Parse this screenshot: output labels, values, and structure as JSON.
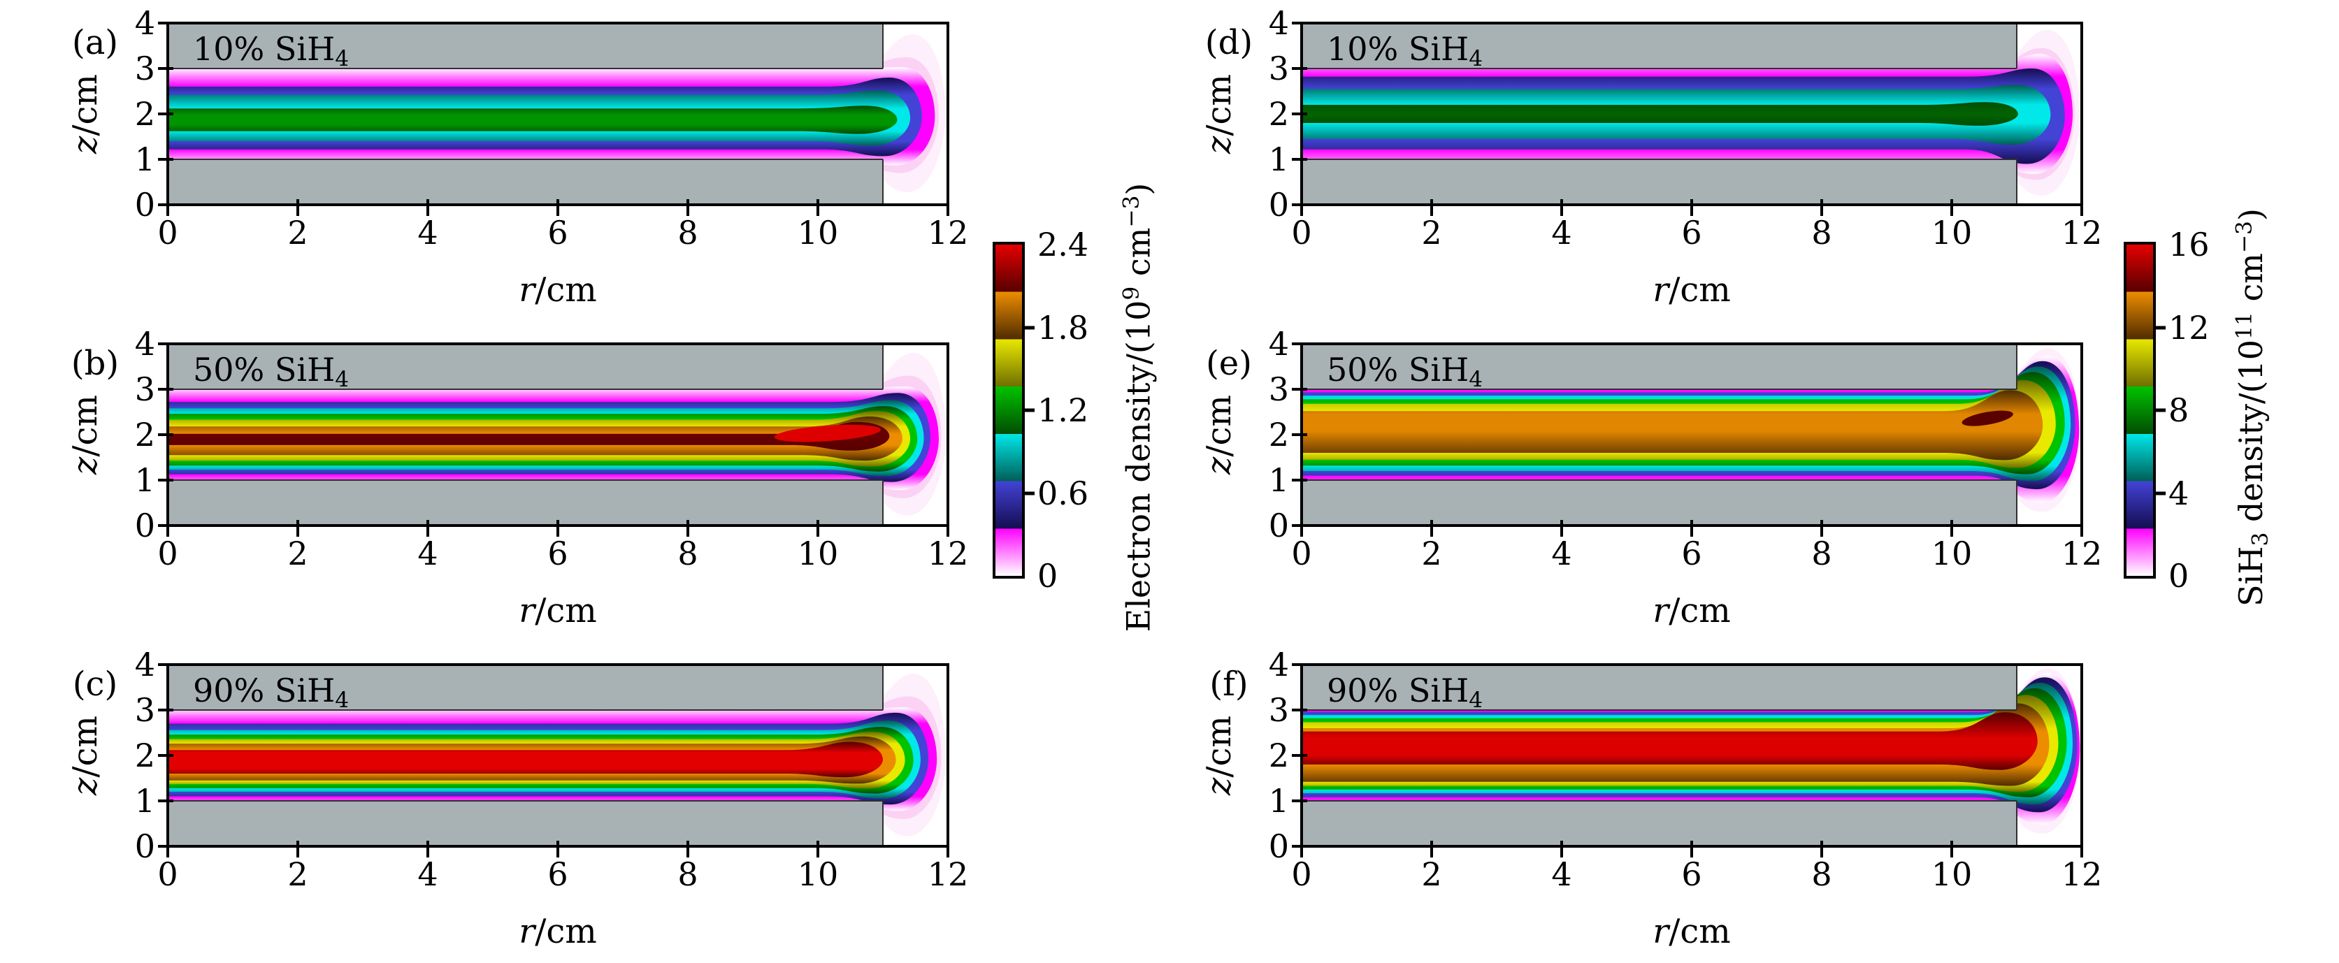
{
  "figure": {
    "description": "Six filled-contour maps of a capacitively coupled silane discharge: electron density (panels a-c) and SiH3 radical density (panels d-f) for 10%, 50% and 90% SiH4 content. Gray blocks are the electrodes (r = 0-11 cm, z = 0-1 cm and z = 3-4 cm); the discharge gap is z = 1-3 cm and the open region extends to r = 12 cm.",
    "electrodes": {
      "r_range": [
        0,
        11
      ],
      "lower_z": [
        0,
        1
      ],
      "upper_z": [
        3,
        4
      ],
      "color": "#a8b2b4"
    }
  },
  "colormap": {
    "note": "7 equal bands over the colorbar range; inside each band the color fades from dark at the low-value edge to bright at the high-value edge; lowest band fades from white.",
    "bands": {
      "m": [
        "#ffffff",
        "#ff00ff"
      ],
      "b": [
        "#150d52",
        "#4343d6"
      ],
      "c": [
        "#005e57",
        "#00e8e8"
      ],
      "g": [
        "#024d02",
        "#00c300"
      ],
      "y": [
        "#6f6f00",
        "#e8e800"
      ],
      "o": [
        "#4f2c00",
        "#ec8d00"
      ],
      "r": [
        "#560000",
        "#e60000"
      ]
    },
    "halo_colors": [
      "#fdeffb",
      "#fbd2f4"
    ]
  },
  "colorbars": [
    {
      "label_parts": [
        {
          "t": "Electron density/(10"
        },
        {
          "t": "9",
          "s": "sup"
        },
        {
          "t": " cm"
        },
        {
          "t": "−3",
          "s": "sup"
        },
        {
          "t": ")"
        }
      ],
      "range": [
        0,
        2.4
      ],
      "ticks": [
        0,
        0.6,
        1.2,
        1.8,
        2.4
      ],
      "tick_labels": [
        "0",
        "0.6",
        "1.2",
        "1.8",
        "2.4"
      ]
    },
    {
      "label_parts": [
        {
          "t": "SiH"
        },
        {
          "t": "3",
          "s": "sub"
        },
        {
          "t": " density/(10"
        },
        {
          "t": "11",
          "s": "sup"
        },
        {
          "t": " cm"
        },
        {
          "t": "−3",
          "s": "sup"
        },
        {
          "t": ")"
        }
      ],
      "range": [
        0,
        16
      ],
      "ticks": [
        0,
        4,
        8,
        12,
        16
      ],
      "tick_labels": [
        "0",
        "4",
        "8",
        "12",
        "16"
      ]
    }
  ],
  "chart_data": [
    {
      "panel": "a",
      "type": "filled-contour-map",
      "label": "(a)",
      "title_parts": [
        {
          "t": "10% SiH"
        },
        {
          "t": "4",
          "s": "sub"
        }
      ],
      "quantity": "electron density",
      "silane_fraction_percent": 10,
      "colorbar_index": 0,
      "peak": {
        "value": 1.2,
        "unit": "1e9 cm-3",
        "r": 10.6,
        "z": 1.95
      },
      "x": {
        "label_parts": [
          {
            "t": "r",
            "s": "i"
          },
          {
            "t": "/cm"
          }
        ],
        "range": [
          0,
          12
        ],
        "ticks": [
          0,
          2,
          4,
          6,
          8,
          10,
          12
        ]
      },
      "y": {
        "label_parts": [
          {
            "t": "z",
            "s": "i"
          },
          {
            "t": "/cm"
          }
        ],
        "range": [
          0,
          4
        ],
        "ticks": [
          0,
          1,
          2,
          3,
          4
        ]
      },
      "halos": [
        {
          "tip": 11.96,
          "apex": 3.75,
          "bot": 0.28
        },
        {
          "tip": 11.86,
          "apex": 3.25,
          "bot": 0.7
        }
      ],
      "bands": [
        {
          "c": "m",
          "zt": 3.0,
          "zb": 1.0,
          "tip": 11.8,
          "apex": 3.03,
          "bot": 0.87,
          "izt": 2.6,
          "izb": 1.22
        },
        {
          "c": "b",
          "zt": 2.6,
          "zb": 1.22,
          "tip": 11.6,
          "apex": 2.8,
          "bot": 1.07,
          "izt": 2.42,
          "izb": 1.4
        },
        {
          "c": "c",
          "zt": 2.42,
          "zb": 1.4,
          "tip": 11.42,
          "apex": 2.52,
          "bot": 1.3,
          "izt": 2.12,
          "izb": 1.62
        },
        {
          "c": "g",
          "zt": 2.12,
          "zb": 1.62,
          "tip": 11.22,
          "apex": 2.18,
          "bot": 1.56,
          "izt": 1.98,
          "izb": 1.76,
          "pk": 0.6
        }
      ],
      "blob": null
    },
    {
      "panel": "b",
      "type": "filled-contour-map",
      "label": "(b)",
      "title_parts": [
        {
          "t": "50% SiH"
        },
        {
          "t": "4",
          "s": "sub"
        }
      ],
      "quantity": "electron density",
      "silane_fraction_percent": 50,
      "colorbar_index": 0,
      "peak": {
        "value": 2.3,
        "unit": "1e9 cm-3",
        "r": 10.2,
        "z": 2.0
      },
      "x": {
        "label_parts": [
          {
            "t": "r",
            "s": "i"
          },
          {
            "t": "/cm"
          }
        ],
        "range": [
          0,
          12
        ],
        "ticks": [
          0,
          2,
          4,
          6,
          8,
          10,
          12
        ]
      },
      "y": {
        "label_parts": [
          {
            "t": "z",
            "s": "i"
          },
          {
            "t": "/cm"
          }
        ],
        "range": [
          0,
          4
        ],
        "ticks": [
          0,
          1,
          2,
          3,
          4
        ]
      },
      "halos": [
        {
          "tip": 11.97,
          "apex": 3.8,
          "bot": 0.22
        },
        {
          "tip": 11.9,
          "apex": 3.3,
          "bot": 0.6
        }
      ],
      "bands": [
        {
          "c": "m",
          "zt": 3.0,
          "zb": 1.0,
          "tip": 11.86,
          "apex": 3.06,
          "bot": 0.78,
          "izt": 2.72,
          "izb": 1.13
        },
        {
          "c": "b",
          "zt": 2.72,
          "zb": 1.13,
          "tip": 11.73,
          "apex": 2.92,
          "bot": 0.96,
          "izt": 2.58,
          "izb": 1.23
        },
        {
          "c": "c",
          "zt": 2.58,
          "zb": 1.23,
          "tip": 11.63,
          "apex": 2.76,
          "bot": 1.09,
          "izt": 2.46,
          "izb": 1.32
        },
        {
          "c": "g",
          "zt": 2.46,
          "zb": 1.32,
          "tip": 11.53,
          "apex": 2.63,
          "bot": 1.19,
          "izt": 2.33,
          "izb": 1.43
        },
        {
          "c": "y",
          "zt": 2.33,
          "zb": 1.43,
          "tip": 11.42,
          "apex": 2.52,
          "bot": 1.3,
          "izt": 2.18,
          "izb": 1.55
        },
        {
          "c": "o",
          "zt": 2.18,
          "zb": 1.55,
          "tip": 11.3,
          "apex": 2.4,
          "bot": 1.43,
          "izt": 2.02,
          "izb": 1.77
        },
        {
          "c": "r",
          "zt": 2.02,
          "zb": 1.77,
          "tip": 11.1,
          "apex": 2.28,
          "bot": 1.65,
          "pk": 0.12
        }
      ],
      "blob": {
        "cx": 10.15,
        "cz": 2.03,
        "rx": 0.82,
        "rz": 0.17,
        "rot": -4,
        "color": "#de0000"
      }
    },
    {
      "panel": "c",
      "type": "filled-contour-map",
      "label": "(c)",
      "title_parts": [
        {
          "t": "90% SiH"
        },
        {
          "t": "4",
          "s": "sub"
        }
      ],
      "quantity": "electron density",
      "silane_fraction_percent": 90,
      "colorbar_index": 0,
      "peak": {
        "value": 2.4,
        "unit": "1e9 cm-3",
        "r": 9.5,
        "z": 1.95
      },
      "x": {
        "label_parts": [
          {
            "t": "r",
            "s": "i"
          },
          {
            "t": "/cm"
          }
        ],
        "range": [
          0,
          12
        ],
        "ticks": [
          0,
          2,
          4,
          6,
          8,
          10,
          12
        ]
      },
      "y": {
        "label_parts": [
          {
            "t": "z",
            "s": "i"
          },
          {
            "t": "/cm"
          }
        ],
        "range": [
          0,
          4
        ],
        "ticks": [
          0,
          1,
          2,
          3,
          4
        ]
      },
      "halos": [
        {
          "tip": 11.97,
          "apex": 3.8,
          "bot": 0.22
        },
        {
          "tip": 11.9,
          "apex": 3.3,
          "bot": 0.6
        }
      ],
      "bands": [
        {
          "c": "m",
          "zt": 3.0,
          "zb": 1.0,
          "tip": 11.83,
          "apex": 3.06,
          "bot": 0.78,
          "izt": 2.7,
          "izb": 1.1
        },
        {
          "c": "b",
          "zt": 2.7,
          "zb": 1.1,
          "tip": 11.7,
          "apex": 2.94,
          "bot": 0.92,
          "izt": 2.56,
          "izb": 1.2
        },
        {
          "c": "c",
          "zt": 2.56,
          "zb": 1.2,
          "tip": 11.58,
          "apex": 2.77,
          "bot": 1.05,
          "izt": 2.46,
          "izb": 1.28
        },
        {
          "c": "g",
          "zt": 2.46,
          "zb": 1.28,
          "tip": 11.47,
          "apex": 2.63,
          "bot": 1.16,
          "izt": 2.36,
          "izb": 1.37
        },
        {
          "c": "y",
          "zt": 2.36,
          "zb": 1.37,
          "tip": 11.34,
          "apex": 2.52,
          "bot": 1.27,
          "izt": 2.26,
          "izb": 1.45
        },
        {
          "c": "o",
          "zt": 2.26,
          "zb": 1.45,
          "tip": 11.2,
          "apex": 2.42,
          "bot": 1.38,
          "izt": 2.12,
          "izb": 1.6
        },
        {
          "c": "r",
          "zt": 2.12,
          "zb": 1.6,
          "tip": 11.0,
          "apex": 2.3,
          "bot": 1.52,
          "izt": 2.06,
          "izb": 1.7,
          "pk": 0.97
        }
      ],
      "blob": null
    },
    {
      "panel": "d",
      "type": "filled-contour-map",
      "label": "(d)",
      "title_parts": [
        {
          "t": "10% SiH"
        },
        {
          "t": "4",
          "s": "sub"
        }
      ],
      "quantity": "SiH3 density",
      "silane_fraction_percent": 10,
      "colorbar_index": 1,
      "peak": {
        "value": 7.3,
        "unit": "1e11 cm-3",
        "r": 10.5,
        "z": 2.0
      },
      "x": {
        "label_parts": [
          {
            "t": "r",
            "s": "i"
          },
          {
            "t": "/cm"
          }
        ],
        "range": [
          0,
          12
        ],
        "ticks": [
          0,
          2,
          4,
          6,
          8,
          10,
          12
        ]
      },
      "y": {
        "label_parts": [
          {
            "t": "z",
            "s": "i"
          },
          {
            "t": "/cm"
          }
        ],
        "range": [
          0,
          4
        ],
        "ticks": [
          0,
          1,
          2,
          3,
          4
        ]
      },
      "halos": [
        {
          "tip": 11.97,
          "apex": 3.85,
          "bot": 0.2
        },
        {
          "tip": 11.89,
          "apex": 3.45,
          "bot": 0.55
        }
      ],
      "bands": [
        {
          "c": "m",
          "zt": 3.0,
          "zb": 1.0,
          "tip": 11.86,
          "apex": 3.32,
          "bot": 0.68,
          "izt": 2.82,
          "izb": 1.22
        },
        {
          "c": "b",
          "zt": 2.82,
          "zb": 1.22,
          "tip": 11.74,
          "apex": 3.0,
          "bot": 0.9,
          "izt": 2.55,
          "izb": 1.45
        },
        {
          "c": "c",
          "zt": 2.55,
          "zb": 1.45,
          "tip": 11.52,
          "apex": 2.64,
          "bot": 1.32,
          "izt": 2.2,
          "izb": 1.8
        },
        {
          "c": "g",
          "zt": 2.2,
          "zb": 1.8,
          "tip": 11.02,
          "apex": 2.26,
          "bot": 1.74,
          "pk": 0.18
        }
      ],
      "blob": null
    },
    {
      "panel": "e",
      "type": "filled-contour-map",
      "label": "(e)",
      "title_parts": [
        {
          "t": "50% SiH"
        },
        {
          "t": "4",
          "s": "sub"
        }
      ],
      "quantity": "SiH3 density",
      "silane_fraction_percent": 50,
      "colorbar_index": 1,
      "peak": {
        "value": 13.9,
        "unit": "1e11 cm-3",
        "r": 10.55,
        "z": 2.36
      },
      "x": {
        "label_parts": [
          {
            "t": "r",
            "s": "i"
          },
          {
            "t": "/cm"
          }
        ],
        "range": [
          0,
          12
        ],
        "ticks": [
          0,
          2,
          4,
          6,
          8,
          10,
          12
        ]
      },
      "y": {
        "label_parts": [
          {
            "t": "z",
            "s": "i"
          },
          {
            "t": "/cm"
          }
        ],
        "range": [
          0,
          4
        ],
        "ticks": [
          0,
          1,
          2,
          3,
          4
        ]
      },
      "halos": [
        {
          "tip": 11.98,
          "apex": 3.9,
          "bot": 0.3
        },
        {
          "tip": 11.93,
          "apex": 3.68,
          "bot": 0.55
        }
      ],
      "bands": [
        {
          "c": "m",
          "zt": 3.0,
          "zb": 1.0,
          "tip": 11.96,
          "apex": 3.74,
          "bot": 0.5,
          "izt": 2.93,
          "izb": 1.1
        },
        {
          "c": "b",
          "zt": 2.93,
          "zb": 1.1,
          "tip": 11.9,
          "apex": 3.62,
          "bot": 0.8,
          "izt": 2.86,
          "izb": 1.2
        },
        {
          "c": "c",
          "zt": 2.86,
          "zb": 1.2,
          "tip": 11.83,
          "apex": 3.5,
          "bot": 0.98,
          "izt": 2.78,
          "izb": 1.32
        },
        {
          "c": "g",
          "zt": 2.78,
          "zb": 1.32,
          "tip": 11.74,
          "apex": 3.38,
          "bot": 1.13,
          "izt": 2.68,
          "izb": 1.45
        },
        {
          "c": "y",
          "zt": 2.68,
          "zb": 1.45,
          "tip": 11.6,
          "apex": 3.2,
          "bot": 1.27,
          "izt": 2.52,
          "izb": 1.6
        },
        {
          "c": "o",
          "zt": 2.52,
          "zb": 1.6,
          "tip": 11.4,
          "apex": 2.98,
          "bot": 1.44,
          "izt": 2.45,
          "izb": 2.08,
          "pk": 0.93
        }
      ],
      "blob": {
        "cx": 10.55,
        "cz": 2.36,
        "rx": 0.4,
        "rz": 0.14,
        "rot": -10,
        "color": "#5a0000"
      }
    },
    {
      "panel": "f",
      "type": "filled-contour-map",
      "label": "(f)",
      "title_parts": [
        {
          "t": "90% SiH"
        },
        {
          "t": "4",
          "s": "sub"
        }
      ],
      "quantity": "SiH3 density",
      "silane_fraction_percent": 90,
      "colorbar_index": 1,
      "peak": {
        "value": 15.4,
        "unit": "1e11 cm-3",
        "r": 10.0,
        "z": 2.2
      },
      "x": {
        "label_parts": [
          {
            "t": "r",
            "s": "i"
          },
          {
            "t": "/cm"
          }
        ],
        "range": [
          0,
          12
        ],
        "ticks": [
          0,
          2,
          4,
          6,
          8,
          10,
          12
        ]
      },
      "y": {
        "label_parts": [
          {
            "t": "z",
            "s": "i"
          },
          {
            "t": "/cm"
          }
        ],
        "range": [
          0,
          4
        ],
        "ticks": [
          0,
          1,
          2,
          3,
          4
        ]
      },
      "halos": [
        {
          "tip": 11.98,
          "apex": 3.92,
          "bot": 0.28
        },
        {
          "tip": 11.93,
          "apex": 3.72,
          "bot": 0.52
        }
      ],
      "bands": [
        {
          "c": "m",
          "zt": 3.0,
          "zb": 1.0,
          "tip": 11.97,
          "apex": 3.82,
          "bot": 0.48,
          "izt": 2.96,
          "izb": 1.08
        },
        {
          "c": "b",
          "zt": 2.96,
          "zb": 1.08,
          "tip": 11.93,
          "apex": 3.72,
          "bot": 0.75,
          "izt": 2.89,
          "izb": 1.17
        },
        {
          "c": "c",
          "zt": 2.89,
          "zb": 1.17,
          "tip": 11.86,
          "apex": 3.6,
          "bot": 0.92,
          "izt": 2.82,
          "izb": 1.25
        },
        {
          "c": "g",
          "zt": 2.82,
          "zb": 1.25,
          "tip": 11.77,
          "apex": 3.48,
          "bot": 1.08,
          "izt": 2.73,
          "izb": 1.33
        },
        {
          "c": "y",
          "zt": 2.73,
          "zb": 1.33,
          "tip": 11.64,
          "apex": 3.33,
          "bot": 1.2,
          "izt": 2.6,
          "izb": 1.42
        },
        {
          "c": "o",
          "zt": 2.6,
          "zb": 1.42,
          "tip": 11.5,
          "apex": 3.15,
          "bot": 1.33,
          "izt": 2.53,
          "izb": 1.8
        },
        {
          "c": "r",
          "zt": 2.53,
          "zb": 1.8,
          "tip": 11.32,
          "apex": 2.95,
          "bot": 1.68,
          "izt": 2.38,
          "izb": 2.0,
          "pk": 0.93
        }
      ],
      "blob": null
    }
  ]
}
